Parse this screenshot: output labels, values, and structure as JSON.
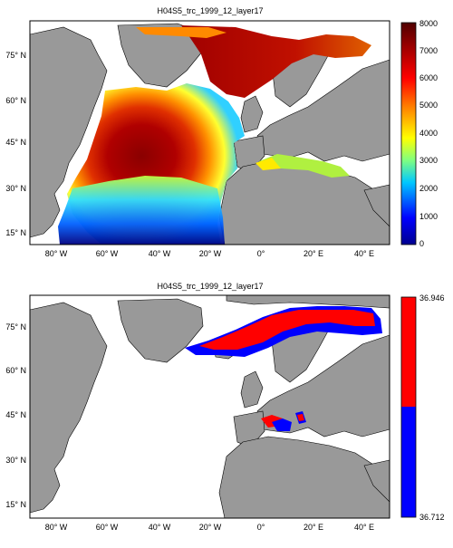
{
  "figure": {
    "panel_top": {
      "title": "H04S5_trc_1999_12_layer17",
      "x_ticks": [
        "80° W",
        "60° W",
        "40° W",
        "20° W",
        "0°",
        "20° E",
        "40° E"
      ],
      "y_ticks": [
        "75° N",
        "60° N",
        "45° N",
        "30° N",
        "15° N"
      ],
      "colorbar": {
        "ticks": [
          "8000",
          "7000",
          "6000",
          "5000",
          "4000",
          "3000",
          "2000",
          "1000",
          "0"
        ],
        "colormap": "jet-dark-red"
      }
    },
    "panel_bottom": {
      "title": "H04S5_trc_1999_12_layer17",
      "x_ticks": [
        "80° W",
        "60° W",
        "40° W",
        "20° W",
        "0°",
        "20° E",
        "40° E"
      ],
      "y_ticks": [
        "75° N",
        "60° N",
        "45° N",
        "30° N",
        "15° N"
      ],
      "colorbar": {
        "top_label": "36.946",
        "bottom_label": "36.712",
        "colors": [
          "#ff0000",
          "#0000ff"
        ]
      }
    },
    "colors": {
      "land": "#999999",
      "background": "#ffffff"
    }
  }
}
